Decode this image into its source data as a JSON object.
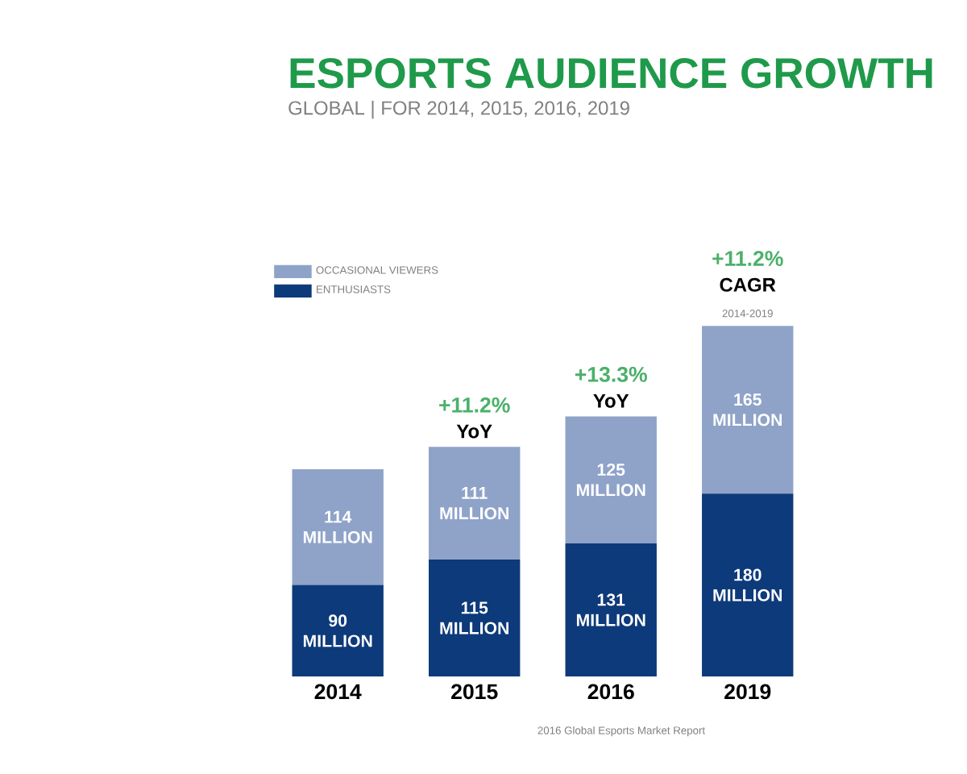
{
  "chart_data": {
    "type": "bar",
    "title": "ESPORTS AUDIENCE GROWTH",
    "subtitle": "GLOBAL | FOR 2014, 2015, 2016, 2019",
    "categories": [
      "2014",
      "2015",
      "2016",
      "2019"
    ],
    "stacked": true,
    "legend": "top left",
    "series": [
      {
        "name": "ENTHUSIASTS",
        "color": "#0d3a7a",
        "values": [
          90,
          115,
          131,
          180
        ],
        "value_labels": [
          "90 MILLION",
          "115 MILLION",
          "131 MILLION",
          "180 MILLION"
        ]
      },
      {
        "name": "OCCASIONAL VIEWERS",
        "color": "#8fa3c9",
        "values": [
          114,
          111,
          125,
          165
        ],
        "value_labels": [
          "114 MILLION",
          "111 MILLION",
          "125 MILLION",
          "165 MILLION"
        ]
      }
    ],
    "annotations": [
      {
        "text": "+11.2%",
        "x": "2015",
        "y": 226
      },
      {
        "text": "YoY",
        "x": "2015",
        "y": 226
      },
      {
        "text": "+13.3%",
        "x": "2016",
        "y": 256
      },
      {
        "text": "YoY",
        "x": "2016",
        "y": 256
      },
      {
        "text": "+11.2%",
        "x": "2019",
        "y": 345
      },
      {
        "text": "CAGR",
        "x": "2019",
        "y": 345
      },
      {
        "text": "2014-2019",
        "x": "2019",
        "y": 345
      },
      "2016 Global Esports Market Report"
    ]
  }
}
